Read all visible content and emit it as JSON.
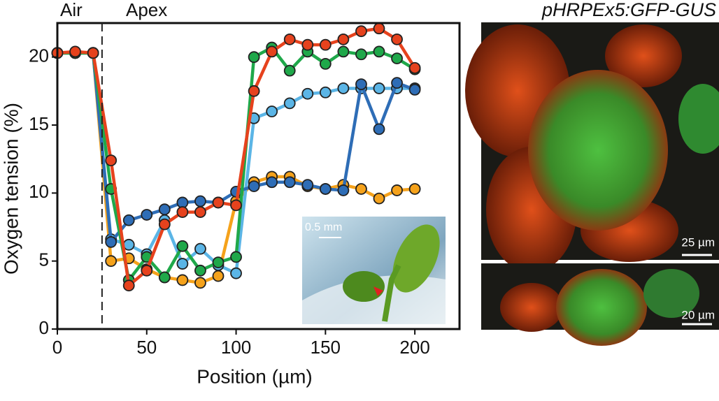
{
  "chart_data": {
    "type": "line",
    "x_label": "Position (µm)",
    "y_label": "Oxygen tension (%)",
    "annotations": [
      "Air",
      "Apex"
    ],
    "dashed_line_x": 25,
    "x": [
      0,
      10,
      20,
      30,
      40,
      50,
      60,
      70,
      80,
      90,
      100,
      110,
      120,
      130,
      140,
      150,
      160,
      170,
      180,
      190,
      200
    ],
    "series": [
      {
        "color": "#f5a21b",
        "values": [
          20.3,
          20.3,
          20.3,
          5.0,
          5.2,
          4.4,
          3.8,
          3.6,
          3.4,
          3.9,
          9.4,
          10.8,
          11.2,
          11.2,
          10.5,
          10.3,
          10.6,
          10.3,
          9.6,
          10.2,
          10.3
        ]
      },
      {
        "color": "#5bb5e6",
        "values": [
          20.3,
          20.3,
          20.3,
          6.6,
          6.2,
          5.5,
          8.0,
          4.8,
          5.9,
          4.7,
          4.1,
          15.5,
          16.0,
          16.6,
          17.3,
          17.4,
          17.7,
          17.7,
          17.7,
          17.7,
          17.7
        ]
      },
      {
        "color": "#2e6db6",
        "values": [
          20.3,
          20.3,
          20.3,
          6.4,
          8.0,
          8.4,
          8.8,
          9.3,
          9.4,
          9.3,
          10.1,
          10.5,
          10.8,
          10.8,
          10.6,
          10.3,
          10.2,
          18.0,
          14.7,
          18.1,
          17.6
        ]
      },
      {
        "color": "#1fa84a",
        "values": [
          20.3,
          20.3,
          20.3,
          10.3,
          3.6,
          5.3,
          3.8,
          6.1,
          4.3,
          4.9,
          5.3,
          20.0,
          20.7,
          19.0,
          20.4,
          19.5,
          20.4,
          20.2,
          20.4,
          19.9,
          19.1
        ]
      },
      {
        "color": "#e6421d",
        "values": [
          20.3,
          20.4,
          20.3,
          12.4,
          3.2,
          4.3,
          7.7,
          8.6,
          8.6,
          9.3,
          9.1,
          17.5,
          20.4,
          21.3,
          20.9,
          20.9,
          21.3,
          21.9,
          22.1,
          21.3,
          19.2
        ]
      }
    ],
    "xlim": [
      0,
      225
    ],
    "ylim": [
      0,
      22.5
    ],
    "xticks": [
      0,
      50,
      100,
      150,
      200
    ],
    "yticks": [
      0,
      5,
      10,
      15,
      20
    ],
    "inset_scale": "0.5 mm"
  },
  "panels": {
    "title": "pHRPEx5:GFP-GUS",
    "scale_top": "25 µm",
    "scale_bottom": "20 µm"
  }
}
